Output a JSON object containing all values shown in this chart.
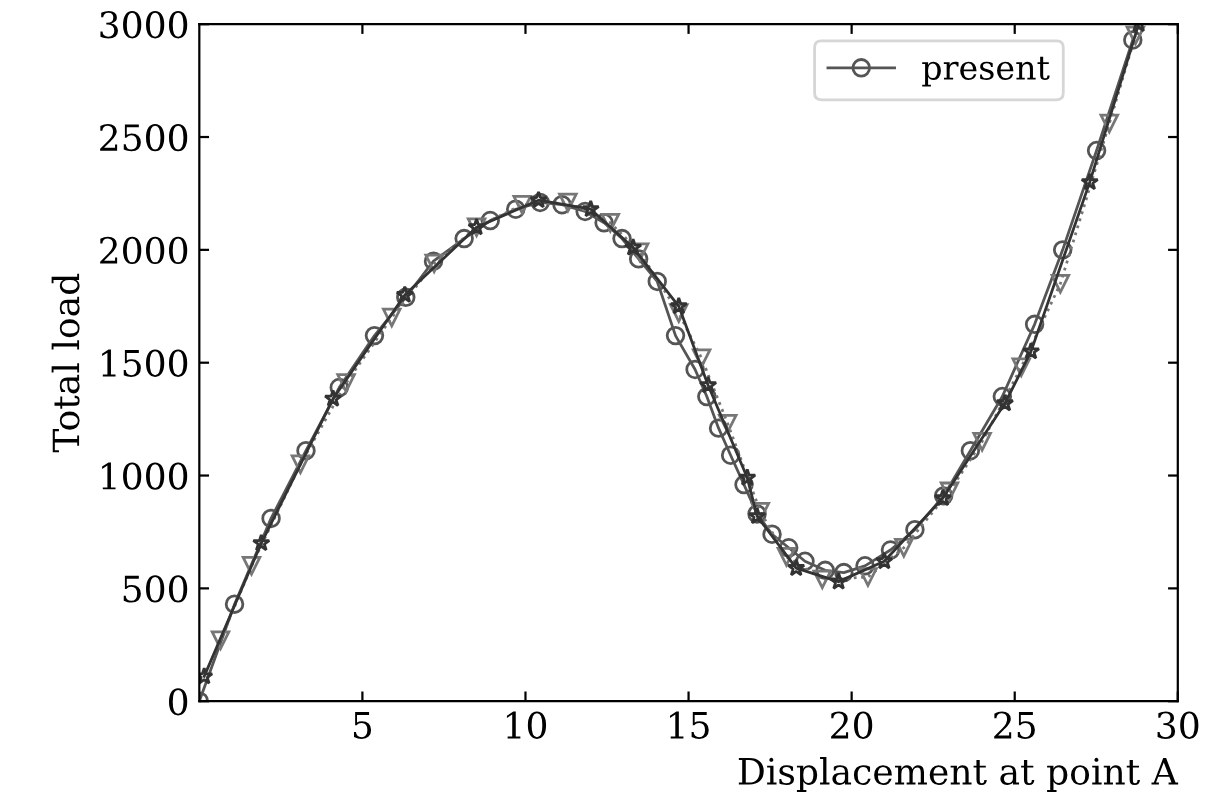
{
  "chart_data": {
    "type": "line",
    "xlabel": "Displacement at point A",
    "ylabel": "Total load",
    "xlim": [
      0,
      30
    ],
    "ylim": [
      0,
      3000
    ],
    "xticks": [
      5,
      10,
      15,
      20,
      25,
      30
    ],
    "yticks": [
      0,
      500,
      1000,
      1500,
      2000,
      2500,
      3000
    ],
    "grid": false,
    "legend": "top right",
    "series": [
      {
        "name": "present",
        "color": "#555555",
        "marker": "circle",
        "line_style": "solid",
        "x": [
          0,
          1.08,
          2.2,
          3.27,
          4.29,
          5.37,
          6.33,
          7.18,
          8.12,
          8.92,
          9.7,
          10.45,
          11.12,
          11.83,
          12.41,
          12.96,
          13.47,
          14.04,
          14.6,
          15.2,
          15.56,
          15.92,
          16.29,
          16.7,
          17.1,
          17.56,
          18.07,
          18.57,
          19.19,
          19.76,
          20.41,
          21.19,
          21.94,
          22.82,
          23.64,
          24.62,
          25.61,
          26.47,
          27.51,
          28.62
        ],
        "values": [
          0,
          430,
          810,
          1110,
          1390,
          1620,
          1790,
          1950,
          2050,
          2130,
          2180,
          2210,
          2200,
          2170,
          2120,
          2050,
          1960,
          1860,
          1620,
          1470,
          1350,
          1210,
          1090,
          960,
          830,
          740,
          680,
          620,
          580,
          570,
          600,
          670,
          760,
          910,
          1110,
          1350,
          1670,
          2000,
          2440,
          2930
        ]
      },
      {
        "color": "#777777",
        "marker": "triangle",
        "line_style": "dotted",
        "x": [
          0.65,
          1.6,
          3.1,
          4.5,
          5.9,
          7.2,
          8.5,
          9.9,
          11.3,
          12.6,
          13.5,
          14.7,
          15.4,
          16.2,
          17.2,
          18.0,
          19.1,
          20.5,
          21.6,
          23.0,
          24.0,
          25.2,
          26.4,
          27.9,
          28.7
        ],
        "values": [
          270,
          600,
          1050,
          1410,
          1700,
          1940,
          2100,
          2200,
          2210,
          2120,
          1990,
          1720,
          1520,
          1230,
          840,
          640,
          540,
          550,
          680,
          930,
          1150,
          1480,
          1850,
          2560,
          2950
        ]
      },
      {
        "color": "#333333",
        "marker": "star",
        "line_style": "solid",
        "x": [
          0.15,
          1.9,
          4.1,
          6.3,
          8.5,
          10.4,
          12.0,
          13.3,
          14.7,
          15.6,
          16.8,
          17.1,
          18.3,
          19.6,
          21.0,
          22.8,
          24.7,
          25.5,
          27.3,
          28.8
        ],
        "values": [
          110,
          700,
          1340,
          1800,
          2100,
          2220,
          2180,
          2010,
          1750,
          1400,
          990,
          820,
          590,
          530,
          620,
          900,
          1320,
          1550,
          2300,
          3000
        ]
      }
    ]
  }
}
